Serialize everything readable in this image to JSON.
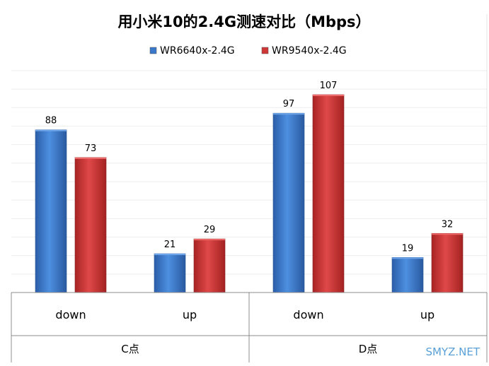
{
  "chart_data": {
    "type": "bar",
    "title": "用小米10的2.4G测速对比（Mbps）",
    "categories": [
      "down",
      "up",
      "down",
      "up"
    ],
    "groups": [
      {
        "label": "C点",
        "categories": [
          "down",
          "up"
        ]
      },
      {
        "label": "D点",
        "categories": [
          "down",
          "up"
        ]
      }
    ],
    "series": [
      {
        "name": "WR6640x-2.4G",
        "color": "#3a78c9",
        "values": [
          88,
          21,
          97,
          19
        ]
      },
      {
        "name": "WR9540x-2.4G",
        "color": "#cf3636",
        "values": [
          73,
          29,
          107,
          32
        ]
      }
    ],
    "ylim": [
      0,
      125
    ],
    "legend_position": "top",
    "grid": true
  },
  "watermark": "SMYZ.NET"
}
